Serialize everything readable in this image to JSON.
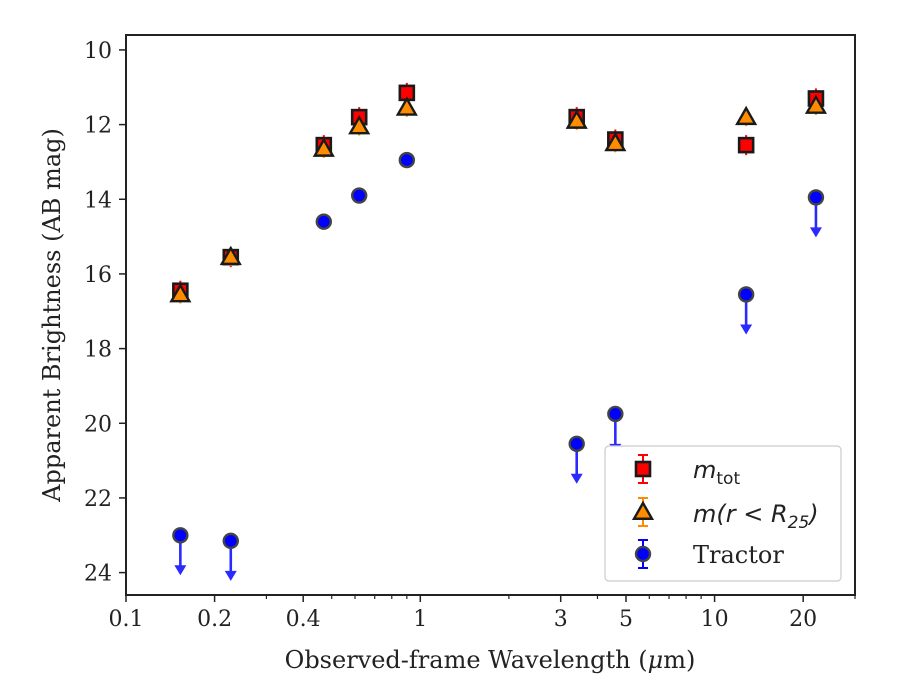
{
  "chart_data": {
    "type": "scatter",
    "xscale": "log",
    "yaxis_inverted": true,
    "xlim": [
      0.1,
      30
    ],
    "ylim": [
      9.6,
      24.6
    ],
    "xlabel_main": "Observed-frame Wavelength (",
    "xlabel_mu": "μ",
    "xlabel_unit": "m)",
    "ylabel": "Apparent Brightness (AB mag)",
    "x_ticks": [
      {
        "value": 0.1,
        "label": "0.1"
      },
      {
        "value": 0.2,
        "label": "0.2"
      },
      {
        "value": 0.4,
        "label": "0.4"
      },
      {
        "value": 1,
        "label": "1"
      },
      {
        "value": 3,
        "label": "3"
      },
      {
        "value": 5,
        "label": "5"
      },
      {
        "value": 10,
        "label": "10"
      },
      {
        "value": 20,
        "label": "20"
      }
    ],
    "y_ticks": [
      {
        "value": 10,
        "label": "10"
      },
      {
        "value": 12,
        "label": "12"
      },
      {
        "value": 14,
        "label": "14"
      },
      {
        "value": 16,
        "label": "16"
      },
      {
        "value": 18,
        "label": "18"
      },
      {
        "value": 20,
        "label": "20"
      },
      {
        "value": 22,
        "label": "22"
      },
      {
        "value": 24,
        "label": "24"
      }
    ],
    "series": [
      {
        "name": "m_tot",
        "label_main": "m",
        "label_sub": "tot",
        "marker": "square",
        "color": "#ff0000",
        "points": [
          {
            "x": 0.153,
            "y": 16.45
          },
          {
            "x": 0.227,
            "y": 15.55
          },
          {
            "x": 0.47,
            "y": 12.55
          },
          {
            "x": 0.62,
            "y": 11.8
          },
          {
            "x": 0.9,
            "y": 11.15
          },
          {
            "x": 3.4,
            "y": 11.8
          },
          {
            "x": 4.6,
            "y": 12.4
          },
          {
            "x": 12.8,
            "y": 12.55
          },
          {
            "x": 22.1,
            "y": 11.3
          }
        ]
      },
      {
        "name": "m(r < R_25)",
        "label_main": "m(r < R",
        "label_sub": "25",
        "label_end": ")",
        "marker": "triangle",
        "color": "#ff8c00",
        "points": [
          {
            "x": 0.153,
            "y": 16.55
          },
          {
            "x": 0.227,
            "y": 15.55
          },
          {
            "x": 0.47,
            "y": 12.65
          },
          {
            "x": 0.62,
            "y": 12.05
          },
          {
            "x": 0.9,
            "y": 11.55
          },
          {
            "x": 3.4,
            "y": 11.9
          },
          {
            "x": 4.6,
            "y": 12.5
          },
          {
            "x": 12.8,
            "y": 11.8
          },
          {
            "x": 22.1,
            "y": 11.5
          }
        ]
      },
      {
        "name": "Tractor",
        "label_main": "Tractor",
        "marker": "circle",
        "color": "#0000ff",
        "points": [
          {
            "x": 0.153,
            "y": 23.0,
            "upper_limit": true
          },
          {
            "x": 0.227,
            "y": 23.15,
            "upper_limit": true
          },
          {
            "x": 0.47,
            "y": 14.6,
            "upper_limit": false
          },
          {
            "x": 0.62,
            "y": 13.9,
            "upper_limit": false
          },
          {
            "x": 0.9,
            "y": 12.95,
            "upper_limit": false
          },
          {
            "x": 3.4,
            "y": 20.55,
            "upper_limit": true
          },
          {
            "x": 4.6,
            "y": 19.75,
            "upper_limit": true
          },
          {
            "x": 12.8,
            "y": 16.55,
            "upper_limit": true
          },
          {
            "x": 22.1,
            "y": 13.95,
            "upper_limit": true
          }
        ]
      }
    ],
    "legend_position": "lower-right"
  }
}
